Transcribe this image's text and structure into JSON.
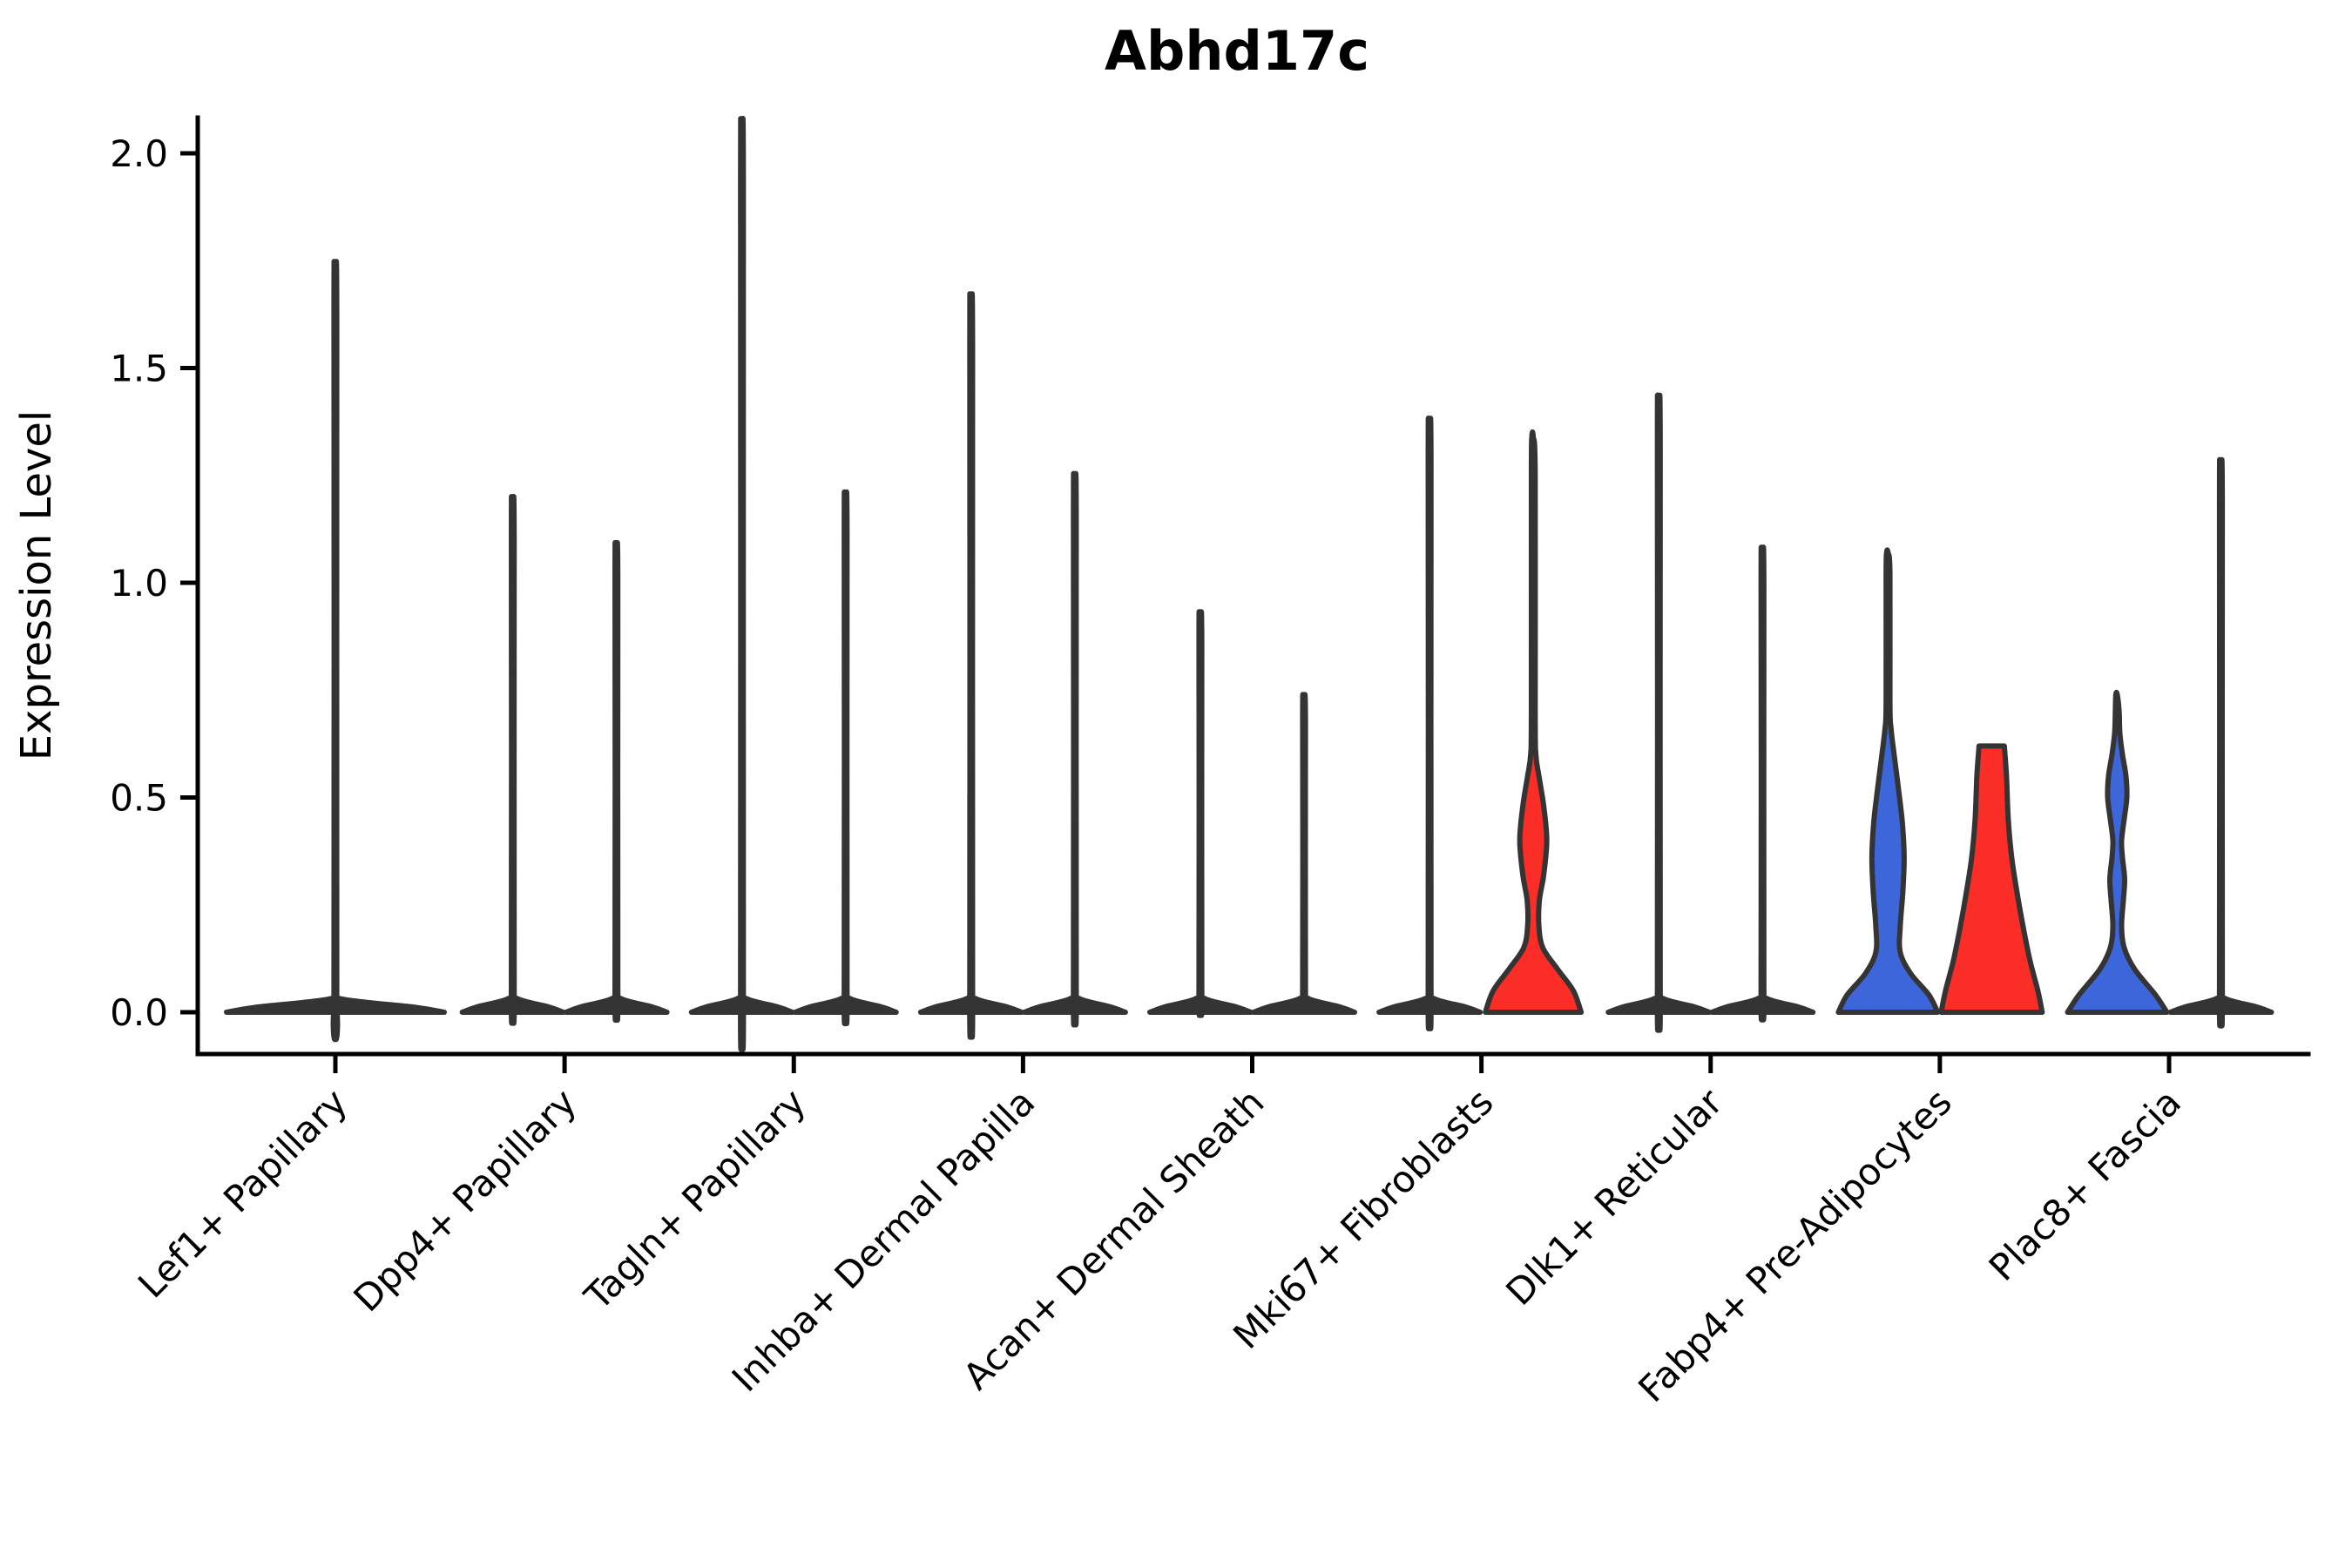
{
  "title": "Abhd17c",
  "y_axis": {
    "label": "Expression Level",
    "ticks": [
      "2.0",
      "1.5",
      "1.0",
      "0.5",
      "0.0"
    ],
    "tick_values": [
      2.0,
      1.5,
      1.0,
      0.5,
      0.0
    ]
  },
  "colors": {
    "blue": "#3E66DB",
    "red": "#FA2E26",
    "violin_edge": "#343434",
    "axis": "#000000",
    "background": "#ffffff"
  },
  "chart_data": {
    "type": "violin",
    "title": "Abhd17c",
    "xlabel": "",
    "ylabel": "Expression Level",
    "ylim": [
      -0.1,
      2.08
    ],
    "ytick_values": [
      0.0,
      0.5,
      1.0,
      1.5,
      2.0
    ],
    "grid": false,
    "legend": "none",
    "layout_note": "9 cell-type groups on x axis; each group holds two dodged violins (left/right split) except Lef1+ Papillary which has a single centered violin; most violins are collapsed to a thin spike with a flat base at 0",
    "categories": [
      "Lef1+ Papillary",
      "Dpp4+ Papillary",
      "Tagln+ Papillary",
      "Inhba+ Dermal Papilla",
      "Acan+ Dermal Sheath",
      "Mki67+ Fibroblasts",
      "Dlk1+ Reticular",
      "Fabp4+ Pre-Adipocytes",
      "Plac8+ Fascia"
    ],
    "violins": [
      {
        "category": "Lef1+ Papillary",
        "slot": "center",
        "fill": "edge",
        "shape": "collapsed",
        "max": 1.66,
        "base_half_width": 125
      },
      {
        "category": "Dpp4+ Papillary",
        "slot": "left",
        "fill": "edge",
        "shape": "collapsed",
        "max": 1.15,
        "base_half_width": 58
      },
      {
        "category": "Dpp4+ Papillary",
        "slot": "right",
        "fill": "edge",
        "shape": "collapsed",
        "max": 1.05,
        "base_half_width": 58
      },
      {
        "category": "Tagln+ Papillary",
        "slot": "left",
        "fill": "edge",
        "shape": "collapsed",
        "max": 1.97,
        "base_half_width": 58
      },
      {
        "category": "Tagln+ Papillary",
        "slot": "right",
        "fill": "edge",
        "shape": "collapsed",
        "max": 1.16,
        "base_half_width": 58
      },
      {
        "category": "Inhba+ Dermal Papilla",
        "slot": "left",
        "fill": "edge",
        "shape": "collapsed",
        "max": 1.59,
        "base_half_width": 58
      },
      {
        "category": "Inhba+ Dermal Papilla",
        "slot": "right",
        "fill": "edge",
        "shape": "collapsed",
        "max": 1.2,
        "base_half_width": 58
      },
      {
        "category": "Acan+ Dermal Sheath",
        "slot": "left",
        "fill": "edge",
        "shape": "collapsed",
        "max": 0.9,
        "base_half_width": 58
      },
      {
        "category": "Acan+ Dermal Sheath",
        "slot": "right",
        "fill": "edge",
        "shape": "collapsed",
        "max": 0.72,
        "base_half_width": 58
      },
      {
        "category": "Mki67+ Fibroblasts",
        "slot": "left",
        "fill": "edge",
        "shape": "collapsed",
        "max": 1.32,
        "base_half_width": 58
      },
      {
        "category": "Mki67+ Fibroblasts",
        "slot": "right",
        "fill": "red",
        "shape": "profiled",
        "max": 1.34,
        "profile": [
          [
            0,
            55
          ],
          [
            0.05,
            46
          ],
          [
            0.1,
            28
          ],
          [
            0.15,
            11
          ],
          [
            0.2,
            6.5
          ],
          [
            0.26,
            7
          ],
          [
            0.32,
            12
          ],
          [
            0.4,
            15.5
          ],
          [
            0.48,
            12
          ],
          [
            0.55,
            6.5
          ],
          [
            0.6,
            3
          ],
          [
            0.7,
            2.2
          ],
          [
            1.25,
            2.2
          ],
          [
            1.34,
            1.6
          ]
        ]
      },
      {
        "category": "Dlk1+ Reticular",
        "slot": "left",
        "fill": "edge",
        "shape": "collapsed",
        "max": 1.37,
        "base_half_width": 58
      },
      {
        "category": "Dlk1+ Reticular",
        "slot": "right",
        "fill": "edge",
        "shape": "collapsed",
        "max": 1.04,
        "base_half_width": 58
      },
      {
        "category": "Fabp4+ Pre-Adipocytes",
        "slot": "left",
        "fill": "blue",
        "shape": "profiled",
        "max": 1.07,
        "profile": [
          [
            0,
            57
          ],
          [
            0.04,
            47
          ],
          [
            0.09,
            26
          ],
          [
            0.14,
            14
          ],
          [
            0.2,
            14
          ],
          [
            0.28,
            17
          ],
          [
            0.36,
            18.5
          ],
          [
            0.44,
            16.5
          ],
          [
            0.52,
            12
          ],
          [
            0.6,
            7
          ],
          [
            0.66,
            3.5
          ],
          [
            0.72,
            2.2
          ],
          [
            1.02,
            2.2
          ],
          [
            1.07,
            1.6
          ]
        ]
      },
      {
        "category": "Fabp4+ Pre-Adipocytes",
        "slot": "right",
        "fill": "red",
        "shape": "profiled",
        "flat_top": true,
        "max": 0.62,
        "profile": [
          [
            0,
            58
          ],
          [
            0.05,
            53
          ],
          [
            0.12,
            44
          ],
          [
            0.2,
            36
          ],
          [
            0.28,
            29
          ],
          [
            0.36,
            23
          ],
          [
            0.45,
            19
          ],
          [
            0.55,
            17
          ],
          [
            0.62,
            14.5
          ]
        ]
      },
      {
        "category": "Plac8+ Fascia",
        "slot": "left",
        "fill": "blue",
        "shape": "profiled",
        "max": 0.74,
        "profile": [
          [
            0,
            57
          ],
          [
            0.04,
            44
          ],
          [
            0.1,
            20
          ],
          [
            0.15,
            8
          ],
          [
            0.2,
            5
          ],
          [
            0.26,
            7
          ],
          [
            0.31,
            8.5
          ],
          [
            0.36,
            6
          ],
          [
            0.4,
            5
          ],
          [
            0.45,
            8
          ],
          [
            0.5,
            11
          ],
          [
            0.55,
            10
          ],
          [
            0.6,
            6
          ],
          [
            0.65,
            3
          ],
          [
            0.7,
            2.2
          ],
          [
            0.74,
            1.6
          ]
        ]
      },
      {
        "category": "Plac8+ Fascia",
        "slot": "right",
        "fill": "edge",
        "shape": "collapsed",
        "max": 1.23,
        "base_half_width": 58
      }
    ]
  }
}
